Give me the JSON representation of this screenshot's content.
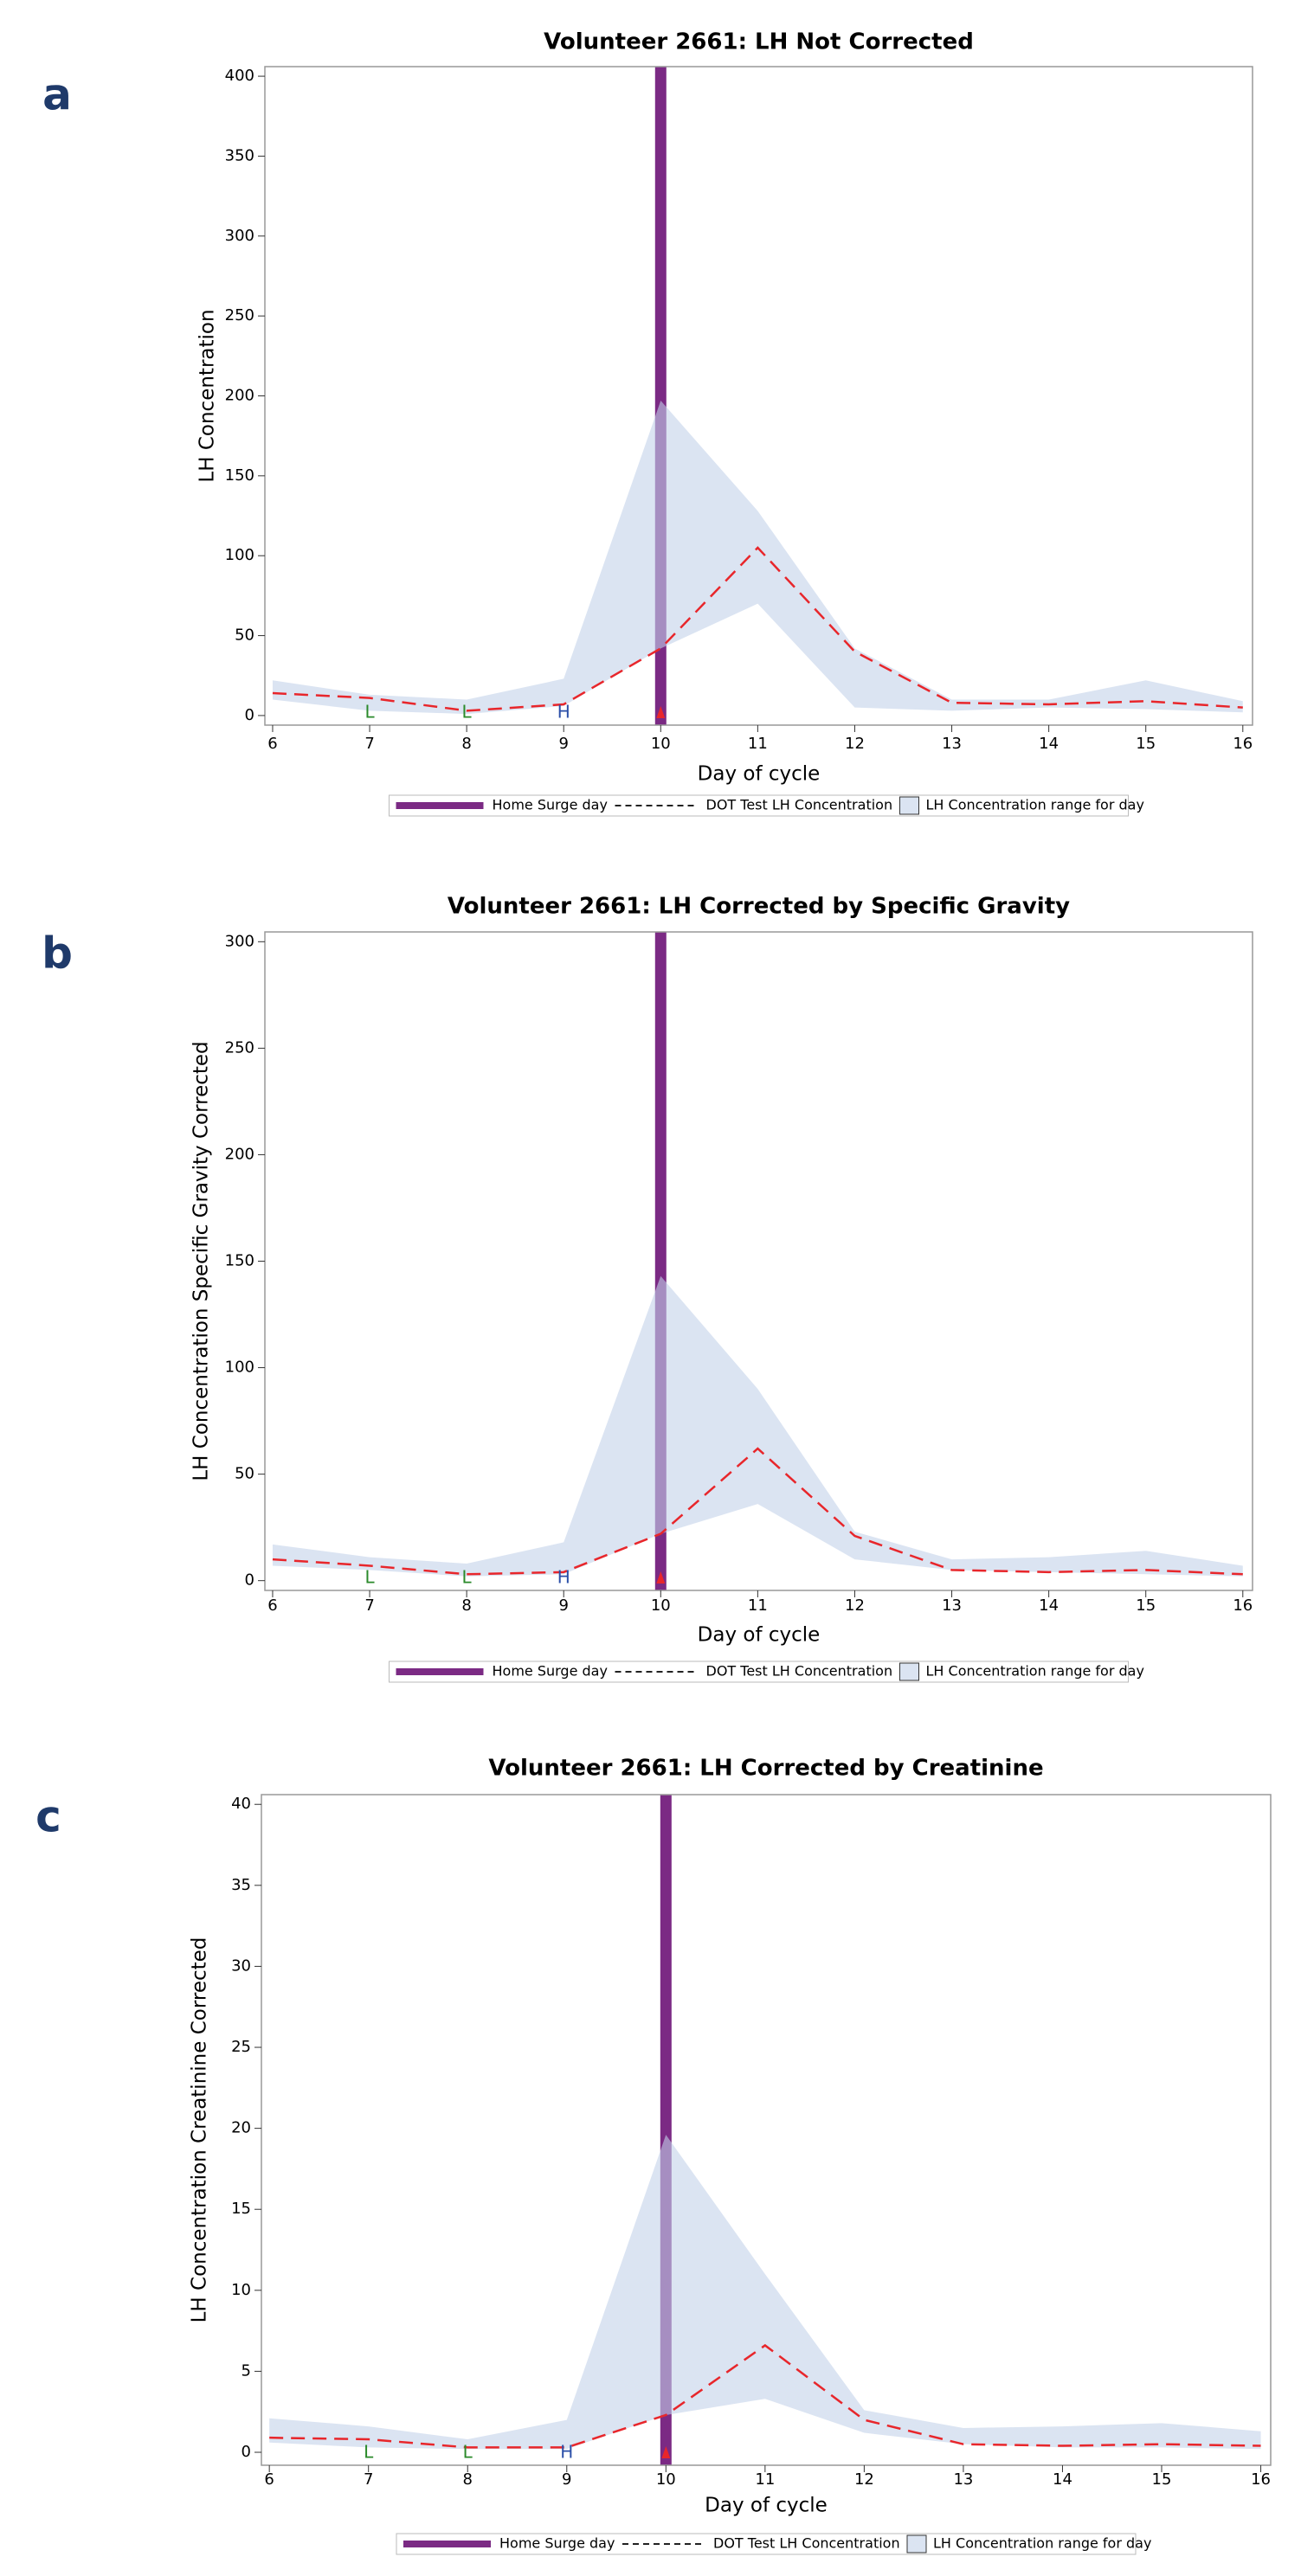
{
  "chart_data": [
    {
      "type": "line",
      "panel": "a",
      "title": "Volunteer 2661: LH Not Corrected",
      "x_label": "Day of cycle",
      "y_label": "LH Concentration",
      "x": [
        6,
        7,
        8,
        9,
        10,
        11,
        12,
        13,
        14,
        15,
        16
      ],
      "xlim": [
        5.92,
        16.1
      ],
      "xticks": [
        6,
        7,
        8,
        9,
        10,
        11,
        12,
        13,
        14,
        15,
        16
      ],
      "ylim": [
        -6,
        406
      ],
      "yticks": [
        0,
        50,
        100,
        150,
        200,
        250,
        300,
        350,
        400
      ],
      "surge_day": {
        "name": "Home Surge day",
        "x": 10,
        "color": "#7b2a84"
      },
      "series": [
        {
          "name": "DOT Test LH Concentration",
          "color": "#e8262b",
          "values": [
            14,
            11,
            3,
            7,
            42,
            105,
            40,
            8,
            7,
            9,
            5
          ]
        }
      ],
      "range": {
        "name": "LH Concentration range for day",
        "color": "#c3d2ea",
        "upper": [
          22,
          13,
          10,
          23,
          197,
          128,
          42,
          10,
          10,
          22,
          9
        ],
        "lower": [
          10,
          3,
          1,
          6,
          42,
          70,
          5,
          3,
          5,
          4,
          2
        ]
      },
      "markers": [
        {
          "x": 7,
          "label": "L",
          "color": "#2a8a2a"
        },
        {
          "x": 8,
          "label": "L",
          "color": "#2a8a2a"
        },
        {
          "x": 9,
          "label": "H",
          "color": "#2b4fa8"
        },
        {
          "x": 10,
          "color": "#e8262b"
        }
      ]
    },
    {
      "type": "line",
      "panel": "b",
      "title": "Volunteer 2661: LH Corrected by Specific Gravity",
      "x_label": "Day of cycle",
      "y_label": "LH Concentration Specific Gravity Corrected",
      "x": [
        6,
        7,
        8,
        9,
        10,
        11,
        12,
        13,
        14,
        15,
        16
      ],
      "xlim": [
        5.92,
        16.1
      ],
      "xticks": [
        6,
        7,
        8,
        9,
        10,
        11,
        12,
        13,
        14,
        15,
        16
      ],
      "ylim": [
        -4.6,
        304.6
      ],
      "yticks": [
        0,
        50,
        100,
        150,
        200,
        250,
        300
      ],
      "surge_day": {
        "name": "Home Surge day",
        "x": 10,
        "color": "#7b2a84"
      },
      "series": [
        {
          "name": "DOT Test LH Concentration",
          "color": "#e8262b",
          "values": [
            10,
            7,
            3,
            4,
            22,
            62,
            21,
            5,
            4,
            5,
            3
          ]
        }
      ],
      "range": {
        "name": "LH Concentration range for day",
        "color": "#c3d2ea",
        "upper": [
          17,
          11,
          8,
          18,
          143,
          90,
          23,
          10,
          11,
          14,
          7
        ],
        "lower": [
          7,
          5,
          2,
          3,
          22,
          36,
          10,
          5,
          4,
          3,
          2
        ]
      },
      "markers": [
        {
          "x": 7,
          "label": "L",
          "color": "#2a8a2a"
        },
        {
          "x": 8,
          "label": "L",
          "color": "#2a8a2a"
        },
        {
          "x": 9,
          "label": "H",
          "color": "#2b4fa8"
        },
        {
          "x": 10,
          "color": "#e8262b"
        }
      ]
    },
    {
      "type": "line",
      "panel": "c",
      "title": "Volunteer 2661: LH Corrected by Creatinine",
      "x_label": "Day of cycle",
      "y_label": "LH Concentration Creatinine Corrected",
      "x": [
        6,
        7,
        8,
        9,
        10,
        11,
        12,
        13,
        14,
        15,
        16
      ],
      "xlim": [
        5.92,
        16.1
      ],
      "xticks": [
        6,
        7,
        8,
        9,
        10,
        11,
        12,
        13,
        14,
        15,
        16
      ],
      "ylim": [
        -0.8,
        40.6
      ],
      "yticks": [
        0,
        5,
        10,
        15,
        20,
        25,
        30,
        35,
        40
      ],
      "surge_day": {
        "name": "Home Surge day",
        "x": 10,
        "color": "#7b2a84"
      },
      "series": [
        {
          "name": "DOT Test LH Concentration",
          "color": "#e8262b",
          "values": [
            0.9,
            0.8,
            0.3,
            0.3,
            2.3,
            6.6,
            2.0,
            0.5,
            0.4,
            0.5,
            0.4
          ]
        }
      ],
      "range": {
        "name": "LH Concentration range for day",
        "color": "#c3d2ea",
        "upper": [
          2.1,
          1.6,
          0.8,
          2.0,
          19.6,
          11,
          2.6,
          1.5,
          1.6,
          1.8,
          1.3
        ],
        "lower": [
          0.6,
          0.3,
          0.2,
          0.2,
          2.3,
          3.3,
          1.2,
          0.5,
          0.3,
          0.3,
          0.2
        ]
      },
      "markers": [
        {
          "x": 7,
          "label": "L",
          "color": "#2a8a2a"
        },
        {
          "x": 8,
          "label": "L",
          "color": "#2a8a2a"
        },
        {
          "x": 9,
          "label": "H",
          "color": "#2b4fa8"
        },
        {
          "x": 10,
          "color": "#e8262b"
        }
      ]
    }
  ]
}
